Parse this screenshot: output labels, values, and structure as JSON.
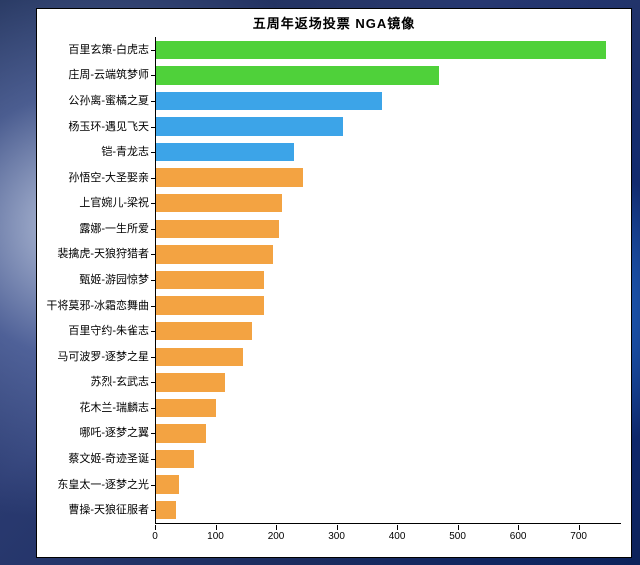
{
  "chart": {
    "type": "horizontal-bar",
    "title": "五周年返场投票 NGA镜像",
    "title_fontsize": 13,
    "background_color": "#ffffff",
    "border_color": "#000000",
    "label_fontsize": 11,
    "tick_fontsize": 10,
    "bar_height_ratio": 0.72,
    "xlim": [
      0,
      770
    ],
    "xticks": [
      0,
      100,
      200,
      300,
      400,
      500,
      600,
      700
    ],
    "categories": [
      "百里玄策-白虎志",
      "庄周-云端筑梦师",
      "公孙离-蜜橘之夏",
      "杨玉环-遇见飞天",
      "铠-青龙志",
      "孙悟空-大圣娶亲",
      "上官婉儿-梁祝",
      "露娜-一生所爱",
      "裴擒虎-天狼狩猎者",
      "甄姬-游园惊梦",
      "干将莫邪-冰霜恋舞曲",
      "百里守约-朱雀志",
      "马可波罗-逐梦之星",
      "苏烈-玄武志",
      "花木兰-瑞麟志",
      "哪吒-逐梦之翼",
      "蔡文姬-奇迹圣诞",
      "东皇太一-逐梦之光",
      "曹操-天狼征服者"
    ],
    "values": [
      745,
      470,
      375,
      310,
      230,
      245,
      210,
      205,
      195,
      180,
      180,
      160,
      145,
      115,
      100,
      85,
      65,
      40,
      35
    ],
    "bar_colors": [
      "#4fd13a",
      "#4fd13a",
      "#3ca4e8",
      "#3ca4e8",
      "#3ca4e8",
      "#f3a342",
      "#f3a342",
      "#f3a342",
      "#f3a342",
      "#f3a342",
      "#f3a342",
      "#f3a342",
      "#f3a342",
      "#f3a342",
      "#f3a342",
      "#f3a342",
      "#f3a342",
      "#f3a342",
      "#f3a342"
    ]
  }
}
